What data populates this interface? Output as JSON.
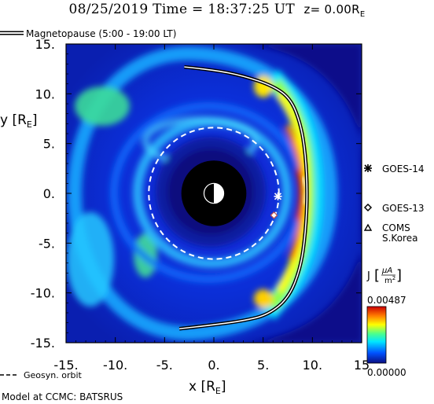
{
  "header": {
    "title": "08/25/2019 Time = 18:37:25 UT",
    "zplane": "z= 0.00R",
    "zplane_sub": "E"
  },
  "chart_data": {
    "type": "heatmap",
    "quantity": "J",
    "xlabel": "x [R",
    "xlabel_sub": "E",
    "ylabel": "y [R",
    "ylabel_sub": "E",
    "xlim": [
      -15,
      15
    ],
    "ylim": [
      -15,
      15
    ],
    "x_ticks": [
      -15,
      -10,
      -5,
      0,
      5,
      10,
      15
    ],
    "y_ticks": [
      15,
      10,
      5,
      0,
      -5,
      -10,
      -15
    ],
    "x_tick_labels": [
      "-15.",
      "-10.",
      "-5.",
      "0.",
      "5.",
      "10.",
      "15"
    ],
    "y_tick_labels": [
      "15.",
      "10.",
      "5.",
      "0.",
      "-5.",
      "-10.",
      "-15."
    ],
    "colorbar": {
      "label": "J",
      "unit_num": "μA",
      "unit_den": "m",
      "unit_den_sup": "2",
      "max_label": "0.00487",
      "min_label": "0.00000",
      "min": 0.0,
      "max": 0.00487,
      "colors": [
        "#0a0e82",
        "#0052ff",
        "#00e6ff",
        "#4cff8c",
        "#ffff00",
        "#ff7a00",
        "#cc0000"
      ]
    },
    "earth": {
      "x": 0,
      "y": 0,
      "inner_black_radius": 3.3,
      "earth_radius": 1.0
    },
    "geosync_orbit": {
      "label": "Geosyn. orbit",
      "radius": 6.6
    },
    "magnetopause": {
      "legend": "Magnetopause (5:00 - 19:00 LT)",
      "points": [
        [
          -3.0,
          12.7
        ],
        [
          0,
          12.4
        ],
        [
          3,
          11.8
        ],
        [
          6,
          10.8
        ],
        [
          7.8,
          9.5
        ],
        [
          8.8,
          7.0
        ],
        [
          9.3,
          4.0
        ],
        [
          9.5,
          0
        ],
        [
          9.3,
          -4.0
        ],
        [
          8.8,
          -7.5
        ],
        [
          7.6,
          -10.5
        ],
        [
          5.5,
          -12.2
        ],
        [
          3.0,
          -12.8
        ],
        [
          0,
          -13.2
        ],
        [
          -3.5,
          -13.6
        ]
      ]
    },
    "satellites": [
      {
        "name": "GOES-14",
        "marker": "asterisk",
        "x": 6.5,
        "y": -0.3
      },
      {
        "name": "GOES-13",
        "marker": "diamond",
        "x": 6.1,
        "y": -2.2
      },
      {
        "name": "COMS\nS.Korea",
        "marker": "triangle",
        "x": null,
        "y": null
      }
    ]
  },
  "legend": {
    "magnetopause_label": "Magnetopause (5:00 - 19:00 LT)",
    "geosync_label": "Geosyn. orbit"
  },
  "footer": {
    "credit": "Model at CCMC: BATSRUS"
  },
  "satellite_labels": {
    "goes14": "GOES-14",
    "goes13": "GOES-13",
    "coms_line1": "COMS",
    "coms_line2": "S.Korea"
  },
  "colors": {
    "background_field": "#0c1090",
    "magnetopause_line": "#000000",
    "geosync_line": "#ffffff"
  }
}
